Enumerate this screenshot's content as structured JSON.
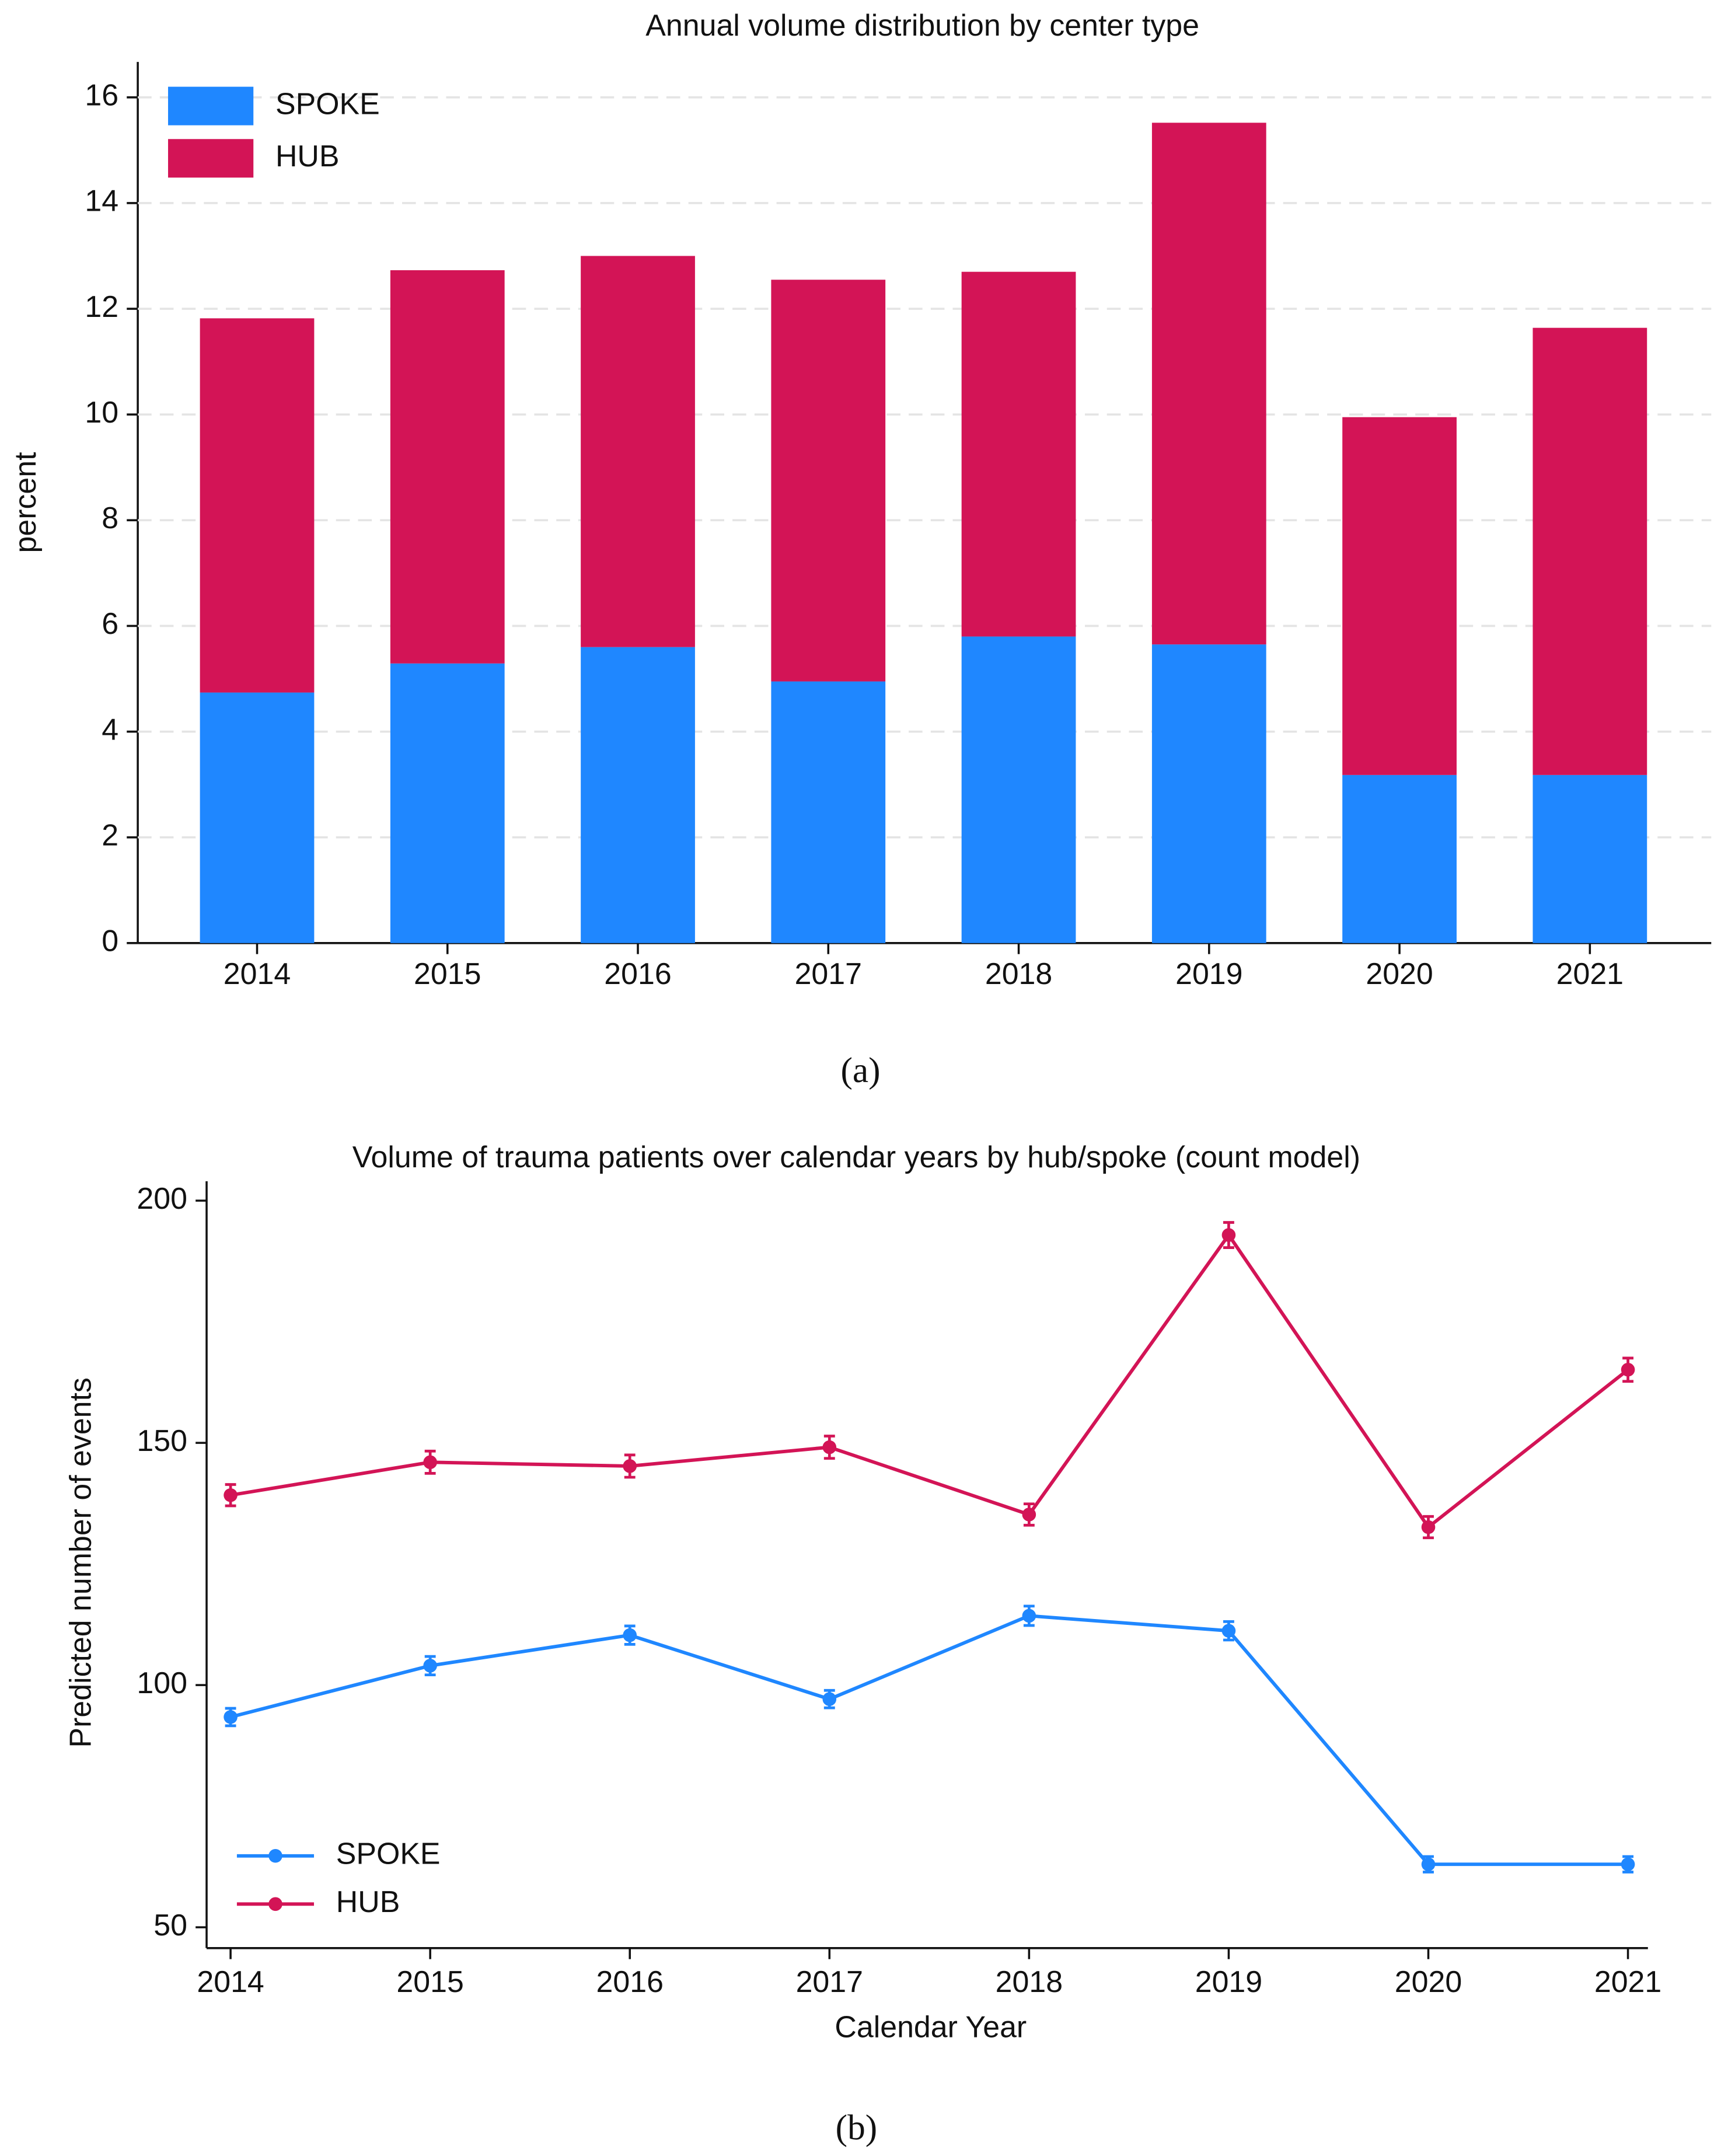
{
  "chart_data": [
    {
      "type": "bar",
      "stacked": true,
      "title": "Annual volume distribution by center type",
      "y_label": "percent",
      "caption": "(a)",
      "categories": [
        "2014",
        "2015",
        "2016",
        "2017",
        "2018",
        "2019",
        "2020",
        "2021"
      ],
      "series": [
        {
          "name": "SPOKE",
          "color": "#1f87ff",
          "values": [
            4.74,
            5.29,
            5.6,
            4.95,
            5.8,
            5.65,
            3.18,
            3.18
          ]
        },
        {
          "name": "HUB",
          "color": "#d31456",
          "values": [
            7.08,
            7.44,
            7.4,
            7.6,
            6.9,
            9.87,
            6.77,
            8.46
          ]
        }
      ],
      "ylim": [
        0,
        16.67
      ],
      "yticks": [
        0,
        2,
        4,
        6,
        8,
        10,
        12,
        14,
        16
      ],
      "grid": true,
      "legend": "upper left"
    },
    {
      "type": "line",
      "title": "Volume of trauma patients over calendar years by hub/spoke (count model)",
      "x_label": "Calendar Year",
      "y_label": "Predicted number of events",
      "caption": "(b)",
      "x": [
        2014,
        2015,
        2016,
        2017,
        2018,
        2019,
        2020,
        2021
      ],
      "series": [
        {
          "name": "SPOKE",
          "color": "#1f87ff",
          "values": [
            93.4,
            104,
            110.3,
            97.1,
            114.3,
            111.2,
            63,
            63
          ],
          "errors": [
            1.8,
            1.9,
            1.9,
            1.8,
            2,
            1.9,
            1.6,
            1.6
          ]
        },
        {
          "name": "HUB",
          "color": "#d31456",
          "values": [
            139.2,
            146,
            145.2,
            149.1,
            135.2,
            192.9,
            132.6,
            165.1
          ],
          "errors": [
            2.2,
            2.3,
            2.3,
            2.3,
            2.2,
            2.6,
            2.2,
            2.4
          ]
        }
      ],
      "xlim": [
        2013.88,
        2021.1
      ],
      "xticks": [
        2014,
        2015,
        2016,
        2017,
        2018,
        2019,
        2020,
        2021
      ],
      "ylim": [
        45.7,
        204
      ],
      "yticks": [
        50,
        100,
        150,
        200
      ],
      "grid": false,
      "legend": "lower left"
    }
  ]
}
